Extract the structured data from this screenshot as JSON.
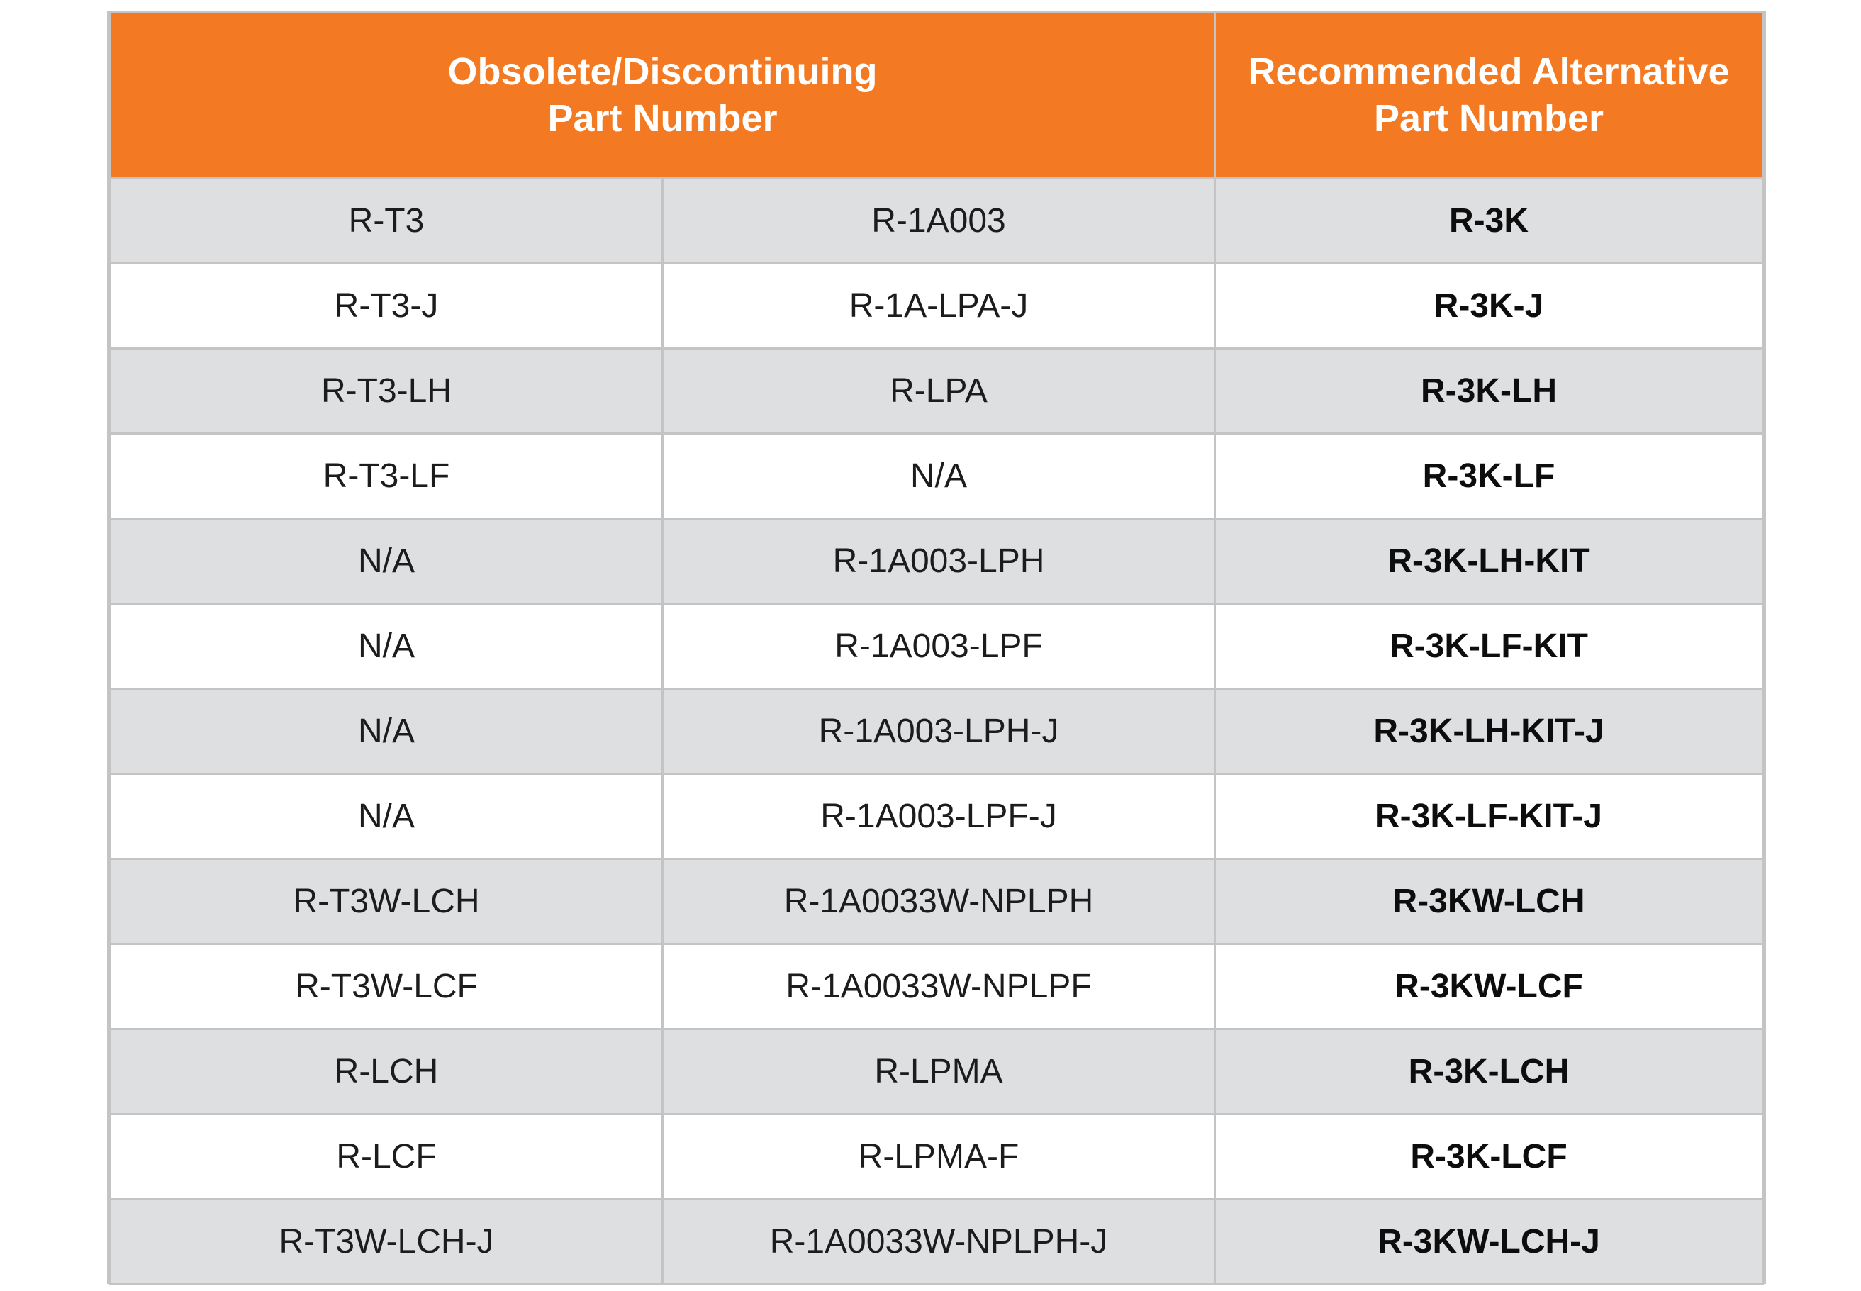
{
  "table": {
    "header": {
      "obsolete_line1": "Obsolete/Discontinuing",
      "obsolete_line2": "Part Number",
      "recommended_line1": "Recommended Alternative",
      "recommended_line2": "Part Number"
    },
    "colors": {
      "header_bg": "#f37a23",
      "header_text": "#ffffff",
      "row_shade": "#dedfe1",
      "row_plain": "#ffffff",
      "border": "#c4c4c4"
    },
    "rows": [
      {
        "obsolete_a": "R-T3",
        "obsolete_b": "R-1A003",
        "recommended": "R-3K"
      },
      {
        "obsolete_a": "R-T3-J",
        "obsolete_b": "R-1A-LPA-J",
        "recommended": "R-3K-J"
      },
      {
        "obsolete_a": "R-T3-LH",
        "obsolete_b": "R-LPA",
        "recommended": "R-3K-LH"
      },
      {
        "obsolete_a": "R-T3-LF",
        "obsolete_b": "N/A",
        "recommended": "R-3K-LF"
      },
      {
        "obsolete_a": "N/A",
        "obsolete_b": "R-1A003-LPH",
        "recommended": "R-3K-LH-KIT"
      },
      {
        "obsolete_a": "N/A",
        "obsolete_b": "R-1A003-LPF",
        "recommended": "R-3K-LF-KIT"
      },
      {
        "obsolete_a": "N/A",
        "obsolete_b": "R-1A003-LPH-J",
        "recommended": "R-3K-LH-KIT-J"
      },
      {
        "obsolete_a": "N/A",
        "obsolete_b": "R-1A003-LPF-J",
        "recommended": "R-3K-LF-KIT-J"
      },
      {
        "obsolete_a": "R-T3W-LCH",
        "obsolete_b": "R-1A0033W-NPLPH",
        "recommended": "R-3KW-LCH"
      },
      {
        "obsolete_a": "R-T3W-LCF",
        "obsolete_b": "R-1A0033W-NPLPF",
        "recommended": "R-3KW-LCF"
      },
      {
        "obsolete_a": "R-LCH",
        "obsolete_b": "R-LPMA",
        "recommended": "R-3K-LCH"
      },
      {
        "obsolete_a": "R-LCF",
        "obsolete_b": "R-LPMA-F",
        "recommended": "R-3K-LCF"
      },
      {
        "obsolete_a": "R-T3W-LCH-J",
        "obsolete_b": "R-1A0033W-NPLPH-J",
        "recommended": "R-3KW-LCH-J"
      }
    ]
  }
}
